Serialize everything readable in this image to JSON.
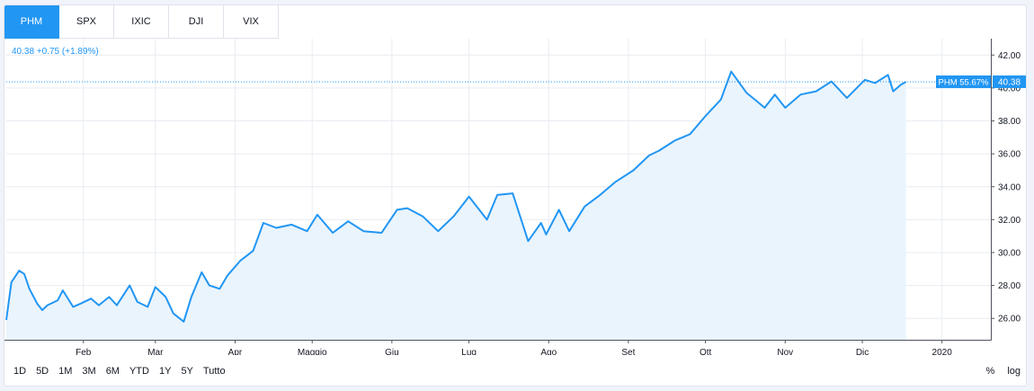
{
  "tabs": [
    {
      "label": "PHM",
      "active": true
    },
    {
      "label": "SPX",
      "active": false
    },
    {
      "label": "IXIC",
      "active": false
    },
    {
      "label": "DJI",
      "active": false
    },
    {
      "label": "VIX",
      "active": false
    }
  ],
  "quote": {
    "price": "40.38",
    "change": "+0.75",
    "change_pct": "(+1.89%)"
  },
  "last_price_label": {
    "symbol_pct": "PHM 55.67%",
    "price": "40.38"
  },
  "ranges": [
    "1D",
    "5D",
    "1M",
    "3M",
    "6M",
    "YTD",
    "1Y",
    "5Y",
    "Tutto"
  ],
  "scale_options": {
    "percent": "%",
    "log": "log"
  },
  "colors": {
    "line": "#2196f3",
    "fill": "#eaf4fd",
    "grid": "#e9ecf2",
    "accent": "#2196f3"
  },
  "chart_data": {
    "type": "area",
    "series": [
      {
        "x": [
          "2019-01-02",
          "2019-01-04",
          "2019-01-07",
          "2019-01-09",
          "2019-01-11",
          "2019-01-14",
          "2019-01-16",
          "2019-01-18",
          "2019-01-22",
          "2019-01-24",
          "2019-01-28",
          "2019-01-31",
          "2019-02-04",
          "2019-02-07",
          "2019-02-11",
          "2019-02-14",
          "2019-02-19",
          "2019-02-22",
          "2019-02-26",
          "2019-03-01",
          "2019-03-05",
          "2019-03-08",
          "2019-03-12",
          "2019-03-15",
          "2019-03-19",
          "2019-03-22",
          "2019-03-26",
          "2019-03-29",
          "2019-04-03",
          "2019-04-08",
          "2019-04-12",
          "2019-04-17",
          "2019-04-23",
          "2019-04-29",
          "2019-05-03",
          "2019-05-09",
          "2019-05-15",
          "2019-05-21",
          "2019-05-28",
          "2019-06-03",
          "2019-06-07",
          "2019-06-13",
          "2019-06-19",
          "2019-06-25",
          "2019-07-01",
          "2019-07-08",
          "2019-07-12",
          "2019-07-18",
          "2019-07-24",
          "2019-07-29",
          "2019-07-31",
          "2019-08-05",
          "2019-08-09",
          "2019-08-15",
          "2019-08-21",
          "2019-08-27",
          "2019-09-03",
          "2019-09-09",
          "2019-09-13",
          "2019-09-19",
          "2019-09-25",
          "2019-10-01",
          "2019-10-07",
          "2019-10-11",
          "2019-10-17",
          "2019-10-21",
          "2019-10-24",
          "2019-10-28",
          "2019-11-01",
          "2019-11-07",
          "2019-11-13",
          "2019-11-19",
          "2019-11-25",
          "2019-12-02",
          "2019-12-06",
          "2019-12-11",
          "2019-12-13",
          "2019-12-16",
          "2019-12-18"
        ],
        "values": [
          25.9,
          28.2,
          28.9,
          28.7,
          27.8,
          26.9,
          26.5,
          26.8,
          27.1,
          27.7,
          26.7,
          26.9,
          27.2,
          26.8,
          27.3,
          26.8,
          28.0,
          27.0,
          26.7,
          27.9,
          27.3,
          26.3,
          25.8,
          27.3,
          28.8,
          28.0,
          27.8,
          28.6,
          29.5,
          30.1,
          31.8,
          31.5,
          31.7,
          31.3,
          32.3,
          31.2,
          31.9,
          31.3,
          31.2,
          32.6,
          32.7,
          32.2,
          31.3,
          32.2,
          33.4,
          32.0,
          33.5,
          33.6,
          30.7,
          31.8,
          31.1,
          32.6,
          31.3,
          32.8,
          33.5,
          34.3,
          35.0,
          35.9,
          36.2,
          36.8,
          37.2,
          38.3,
          39.3,
          41.0,
          39.7,
          39.2,
          38.8,
          39.6,
          38.8,
          39.6,
          39.8,
          40.4,
          39.4,
          40.5,
          40.3,
          40.8,
          39.8,
          40.2,
          40.38
        ]
      }
    ],
    "x_ticks": [
      "Feb",
      "Mar",
      "Apr",
      "Maggio",
      "Giu",
      "Lug",
      "Ago",
      "Set",
      "Ott",
      "Nov",
      "Dic",
      "2020"
    ],
    "y_ticks": [
      "26.00",
      "28.00",
      "30.00",
      "32.00",
      "34.00",
      "36.00",
      "38.00",
      "40.00",
      "42.00"
    ],
    "ylim": [
      24.7,
      43.0
    ],
    "grid": true,
    "last_value": 40.38
  }
}
